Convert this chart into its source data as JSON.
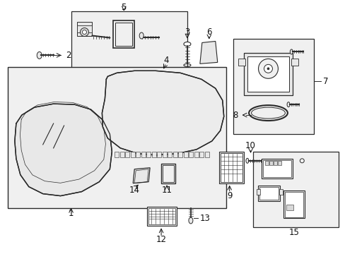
{
  "bg_color": "#ffffff",
  "fig_width": 4.89,
  "fig_height": 3.6,
  "dpi": 100,
  "lc": "#2a2a2a",
  "tc": "#111111",
  "fs": 8.5,
  "gray_fill": "#e8e8e8",
  "light_fill": "#f0f0f0",
  "mid_fill": "#d8d8d8",
  "box_fill": "#f5f5f5"
}
